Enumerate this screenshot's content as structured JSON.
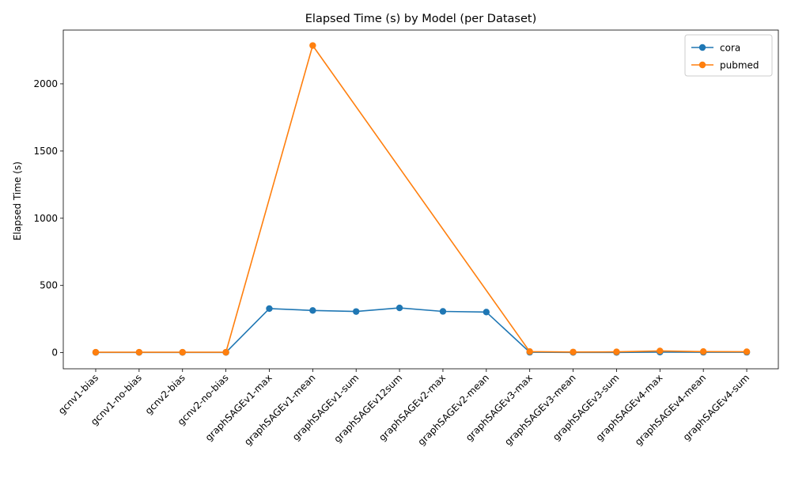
{
  "chart_data": {
    "type": "line",
    "title": "Elapsed Time (s) by Model (per Dataset)",
    "xlabel": "",
    "ylabel": "Elapsed Time (s)",
    "ylim": [
      -120,
      2400
    ],
    "yticks": [
      0,
      500,
      1000,
      1500,
      2000
    ],
    "grid": false,
    "legend_position": "top-right",
    "categories": [
      "gcnv1-bias",
      "gcnv1-no-bias",
      "gcnv2-bias",
      "gcnv2-no-bias",
      "graphSAGEv1-max",
      "graphSAGEv1-mean",
      "graphSAGEv1-sum",
      "graphSAGEv12sum",
      "graphSAGEv2-max",
      "graphSAGEv2-mean",
      "graphSAGEv3-max",
      "graphSAGEv3-mean",
      "graphSAGEv3-sum",
      "graphSAGEv4-max",
      "graphSAGEv4-mean",
      "graphSAGEv4-sum"
    ],
    "series": [
      {
        "name": "cora",
        "color": "#1f77b4",
        "values": [
          2,
          2,
          2,
          2,
          328,
          314,
          306,
          333,
          307,
          302,
          3,
          2,
          2,
          4,
          3,
          3
        ]
      },
      {
        "name": "pubmed",
        "color": "#ff7f0e",
        "values": [
          3,
          3,
          3,
          3,
          null,
          2285,
          null,
          null,
          null,
          null,
          8,
          5,
          6,
          13,
          8,
          7
        ]
      }
    ]
  }
}
